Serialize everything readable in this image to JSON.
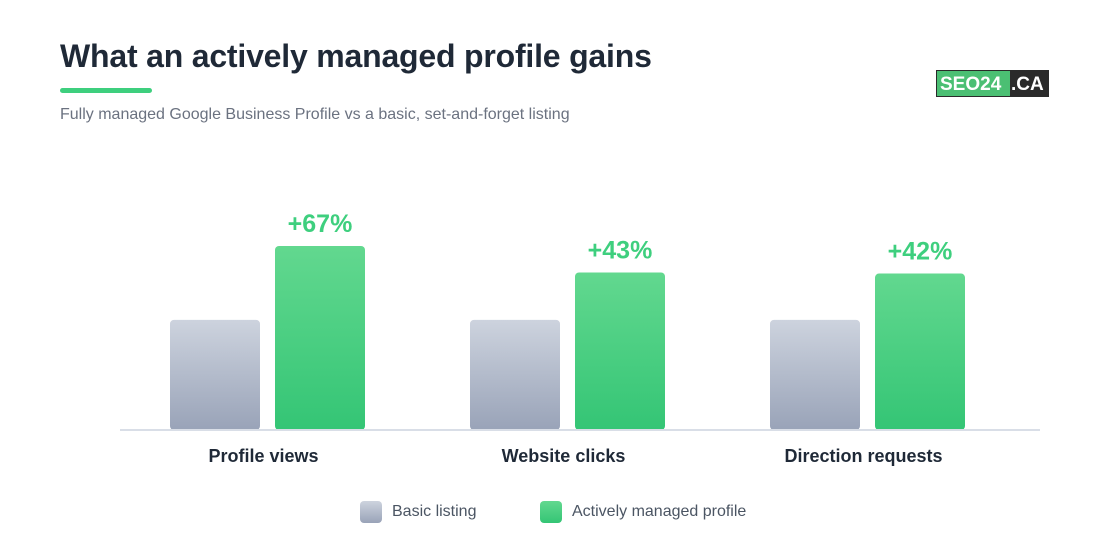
{
  "header": {
    "title": "What an actively managed profile gains",
    "subtitle": "Fully managed Google Business Profile vs a basic, set-and-forget listing"
  },
  "logo": {
    "text_left": "SEO24",
    "text_right": ".CA",
    "colors": {
      "left_bg": "#4bbf73",
      "right_bg": "#2a2a2a",
      "text": "#ffffff"
    }
  },
  "colors": {
    "accent": "#3ecf7e",
    "basic_top": "#cdd3de",
    "basic_bottom": "#99a3b8",
    "managed_top": "#62d88f",
    "managed_bottom": "#34c575",
    "axis": "#d9dee7"
  },
  "chart_data": {
    "type": "bar",
    "categories": [
      "Profile views",
      "Website clicks",
      "Direction requests"
    ],
    "series": [
      {
        "name": "Basic listing",
        "values": [
          100,
          100,
          100
        ]
      },
      {
        "name": "Actively managed profile",
        "values": [
          167,
          143,
          142
        ]
      }
    ],
    "data_labels": [
      "+67%",
      "+43%",
      "+42%"
    ],
    "ylim": [
      0,
      180
    ],
    "grid": false,
    "legend": "bottom-center"
  },
  "legend": {
    "items": [
      {
        "label": "Basic listing"
      },
      {
        "label": "Actively managed profile"
      }
    ]
  }
}
